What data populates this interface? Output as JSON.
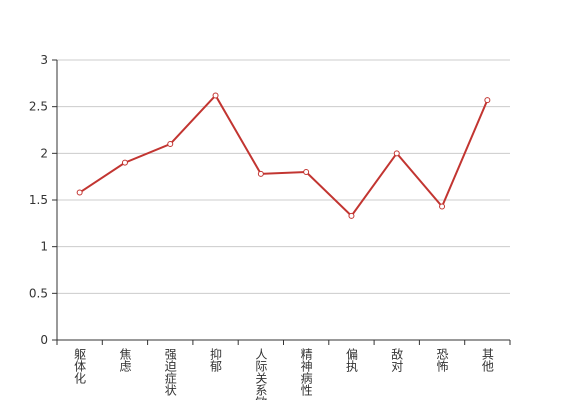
{
  "chart_data": {
    "type": "line",
    "categories": [
      "躯体化",
      "焦虑",
      "强迫症状",
      "抑郁",
      "人际关系敏感",
      "精神病性",
      "偏执",
      "敌对",
      "恐怖",
      "其他"
    ],
    "series": [
      {
        "color": "#c23531",
        "values": [
          1.58,
          1.9,
          2.1,
          2.62,
          1.78,
          1.8,
          1.33,
          2.0,
          1.43,
          2.57
        ]
      }
    ],
    "ylim": [
      0,
      3
    ],
    "yticks": [
      0,
      0.5,
      1,
      1.5,
      2,
      2.5,
      3
    ],
    "grid": true
  }
}
